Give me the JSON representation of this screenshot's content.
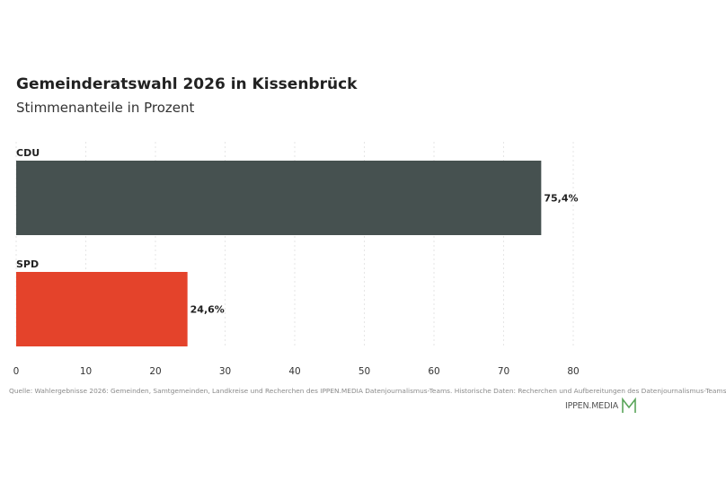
{
  "chart_data": {
    "type": "bar",
    "orientation": "horizontal",
    "title": "Gemeinderatswahl 2026 in Kissenbrück",
    "subtitle": "Stimmenanteile in Prozent",
    "categories": [
      "CDU",
      "SPD"
    ],
    "values": [
      75.4,
      24.6
    ],
    "value_labels": [
      "75,4%",
      "24,6%"
    ],
    "colors": [
      "#465150",
      "#e4432b"
    ],
    "xlim": [
      0,
      80
    ],
    "xticks": [
      0,
      10,
      20,
      30,
      40,
      50,
      60,
      70,
      80
    ],
    "xlabel": "",
    "ylabel": "",
    "grid": true,
    "legend": "none"
  },
  "footer": {
    "source": "Quelle: Wahlergebnisse 2026: Gemeinden, Samtgemeinden, Landkreise und Recherchen des IPPEN.MEDIA Datenjournalismus-Teams. Historische Daten: Recherchen und Aufbereitungen des Datenjournalismus-Teams",
    "logo_text": "IPPEN.MEDIA",
    "logo_color": "#5aa55a"
  }
}
